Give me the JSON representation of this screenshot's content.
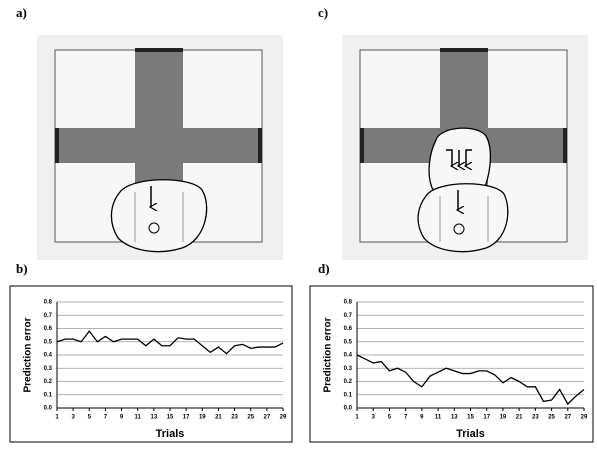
{
  "panels": [
    "a)",
    "b)",
    "c)",
    "d)"
  ],
  "chart_data": [
    {
      "type": "line",
      "x_label": "Trials",
      "y_label": "Prediction error",
      "x": [
        1,
        2,
        3,
        4,
        5,
        6,
        7,
        8,
        9,
        10,
        11,
        12,
        13,
        14,
        15,
        16,
        17,
        18,
        19,
        20,
        21,
        22,
        23,
        24,
        25,
        26,
        27,
        28,
        29
      ],
      "values": [
        0.5,
        0.52,
        0.52,
        0.5,
        0.58,
        0.5,
        0.54,
        0.5,
        0.52,
        0.52,
        0.52,
        0.47,
        0.52,
        0.47,
        0.47,
        0.53,
        0.52,
        0.52,
        0.47,
        0.42,
        0.46,
        0.41,
        0.47,
        0.48,
        0.45,
        0.46,
        0.46,
        0.46,
        0.49
      ],
      "color": "#000000",
      "xlim": [
        1,
        29
      ],
      "xticks": [
        1,
        3,
        5,
        7,
        9,
        11,
        13,
        15,
        17,
        19,
        21,
        23,
        25,
        27,
        29
      ],
      "ylim": [
        0,
        0.8
      ],
      "yticks": [
        {
          "value": 0,
          "label": "0.0"
        },
        0.1,
        0.2,
        0.3,
        0.4,
        0.5,
        0.6,
        0.7,
        0.8
      ],
      "grid": true
    },
    {
      "type": "line",
      "x_label": "Trials",
      "y_label": "Prediction error",
      "x": [
        1,
        2,
        3,
        4,
        5,
        6,
        7,
        8,
        9,
        10,
        11,
        12,
        13,
        14,
        15,
        16,
        17,
        18,
        19,
        20,
        21,
        22,
        23,
        24,
        25,
        26,
        27,
        28,
        29
      ],
      "values": [
        0.4,
        0.37,
        0.34,
        0.35,
        0.28,
        0.3,
        0.27,
        0.2,
        0.16,
        0.24,
        0.27,
        0.3,
        0.28,
        0.26,
        0.26,
        0.28,
        0.28,
        0.25,
        0.19,
        0.23,
        0.2,
        0.16,
        0.16,
        0.05,
        0.06,
        0.14,
        0.03,
        0.09,
        0.14
      ],
      "color": "#000000",
      "xlim": [
        1,
        29
      ],
      "xticks": [
        1,
        3,
        5,
        7,
        9,
        11,
        13,
        15,
        17,
        19,
        21,
        23,
        25,
        27,
        29
      ],
      "ylim": [
        0,
        0.8
      ],
      "yticks": [
        {
          "value": 0,
          "label": "0.0"
        },
        0.1,
        0.2,
        0.3,
        0.4,
        0.5,
        0.6,
        0.7,
        0.8
      ],
      "grid": true
    }
  ]
}
